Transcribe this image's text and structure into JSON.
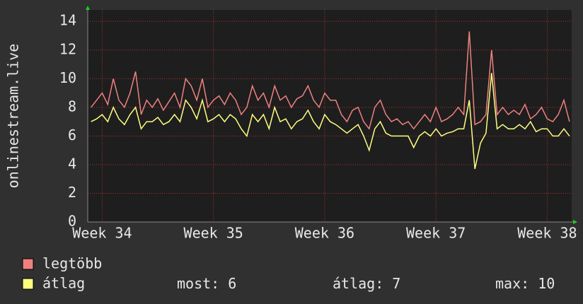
{
  "chart_data": {
    "type": "line",
    "y_label": "onlinestream.live",
    "xlim": [
      33.87,
      38.22
    ],
    "xticks": [
      {
        "value": 34,
        "label": "Week 34"
      },
      {
        "value": 35,
        "label": "Week 35"
      },
      {
        "value": 36,
        "label": "Week 36"
      },
      {
        "value": 37,
        "label": "Week 37"
      },
      {
        "value": 38,
        "label": "Week 38"
      }
    ],
    "ylim": [
      0,
      14.8
    ],
    "yticks": [
      0,
      2,
      4,
      6,
      8,
      10,
      12,
      14
    ],
    "grid": true,
    "x": [
      33.9,
      33.95,
      34.0,
      34.05,
      34.1,
      34.15,
      34.2,
      34.25,
      34.3,
      34.35,
      34.4,
      34.45,
      34.5,
      34.55,
      34.6,
      34.65,
      34.7,
      34.75,
      34.8,
      34.85,
      34.9,
      34.95,
      35.0,
      35.05,
      35.1,
      35.15,
      35.2,
      35.25,
      35.3,
      35.35,
      35.4,
      35.45,
      35.5,
      35.55,
      35.6,
      35.65,
      35.7,
      35.75,
      35.8,
      35.85,
      35.9,
      35.95,
      36.0,
      36.05,
      36.1,
      36.15,
      36.2,
      36.25,
      36.3,
      36.35,
      36.4,
      36.45,
      36.5,
      36.55,
      36.6,
      36.65,
      36.7,
      36.75,
      36.8,
      36.85,
      36.9,
      36.95,
      37.0,
      37.05,
      37.1,
      37.15,
      37.2,
      37.25,
      37.3,
      37.35,
      37.4,
      37.45,
      37.5,
      37.55,
      37.6,
      37.65,
      37.7,
      37.75,
      37.8,
      37.85,
      37.9,
      37.95,
      38.0,
      38.05,
      38.1,
      38.15,
      38.2
    ],
    "series": [
      {
        "name": "legtöbb",
        "color": "#f08080",
        "values": [
          8,
          8.5,
          9,
          8.2,
          10,
          8.5,
          8,
          9,
          10.5,
          7.5,
          8.5,
          8,
          8.6,
          7.8,
          8.4,
          9,
          8,
          10,
          9.5,
          8.5,
          10,
          8,
          8.5,
          8.8,
          8.2,
          9,
          8.5,
          7.5,
          8,
          9.5,
          8.5,
          9,
          8,
          9.5,
          8.5,
          8.8,
          8,
          8.6,
          8.8,
          9.5,
          8.5,
          8,
          9,
          8.5,
          8.5,
          7.5,
          7,
          7.8,
          8,
          7,
          6.5,
          8,
          8.5,
          7.5,
          7,
          7.2,
          6.8,
          7,
          6.5,
          7,
          7.5,
          7,
          8,
          7,
          7.2,
          7.5,
          8,
          7.5,
          13.3,
          6.8,
          7,
          7.5,
          12,
          7.5,
          8,
          7.5,
          7.8,
          7.5,
          8.2,
          7.2,
          7.5,
          8,
          7.2,
          7,
          7.5,
          8.5,
          7
        ]
      },
      {
        "name": "átlag",
        "color": "#ffff80",
        "values": [
          7,
          7.2,
          7.5,
          7,
          8,
          7.2,
          6.8,
          7.5,
          8,
          6.5,
          7,
          7,
          7.3,
          6.8,
          7,
          7.5,
          7,
          8.5,
          8,
          7.2,
          8.5,
          7,
          7.2,
          7.5,
          7,
          7.5,
          7.2,
          6.5,
          6,
          7.5,
          7,
          7.5,
          6.5,
          8,
          7,
          7.2,
          6.5,
          7,
          7.2,
          7.8,
          7,
          6.5,
          7.5,
          7,
          6.8,
          6.5,
          6.2,
          6.5,
          6.8,
          6,
          5,
          6.5,
          7,
          6.2,
          6,
          6,
          6,
          6,
          5.2,
          6,
          6.3,
          6,
          6.5,
          6,
          6.2,
          6.3,
          6.5,
          6.5,
          8.5,
          3.7,
          5.5,
          6.2,
          10.4,
          6.5,
          6.8,
          6.5,
          6.5,
          6.8,
          6.5,
          7,
          6.3,
          6.5,
          6.5,
          6,
          6,
          6.5,
          6
        ]
      }
    ],
    "stats": [
      {
        "label": "most:",
        "value": 6
      },
      {
        "label": "átlag:",
        "value": 7
      },
      {
        "label": "max:",
        "value": 10
      }
    ]
  }
}
